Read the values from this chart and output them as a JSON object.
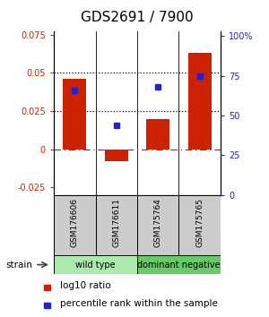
{
  "title": "GDS2691 / 7900",
  "samples": [
    "GSM176606",
    "GSM176611",
    "GSM175764",
    "GSM175765"
  ],
  "log10_ratio": [
    0.046,
    -0.008,
    0.02,
    0.063
  ],
  "percentile_rank": [
    0.66,
    0.44,
    0.68,
    0.75
  ],
  "groups": [
    {
      "label": "wild type",
      "samples": [
        0,
        1
      ],
      "color": "#aaeaaa"
    },
    {
      "label": "dominant negative",
      "samples": [
        2,
        3
      ],
      "color": "#66cc66"
    }
  ],
  "bar_color": "#cc2200",
  "dot_color": "#2222cc",
  "ylim_left": [
    -0.03,
    0.077
  ],
  "ylim_right": [
    0.0,
    1.0267
  ],
  "yticks_left": [
    -0.025,
    0.0,
    0.025,
    0.05,
    0.075
  ],
  "yticks_right": [
    0.0,
    0.25,
    0.5,
    0.75,
    1.0
  ],
  "ytick_labels_left": [
    "-0.025",
    "0",
    "0.025",
    "0.05",
    "0.075"
  ],
  "ytick_labels_right": [
    "0",
    "25",
    "50",
    "75",
    "100%"
  ],
  "hlines": [
    0.025,
    0.05
  ],
  "zero_line": 0.0,
  "background_color": "#ffffff",
  "sample_box_color": "#cccccc",
  "title_fontsize": 11,
  "tick_fontsize": 7,
  "label_fontsize": 7,
  "legend_fontsize": 7.5
}
